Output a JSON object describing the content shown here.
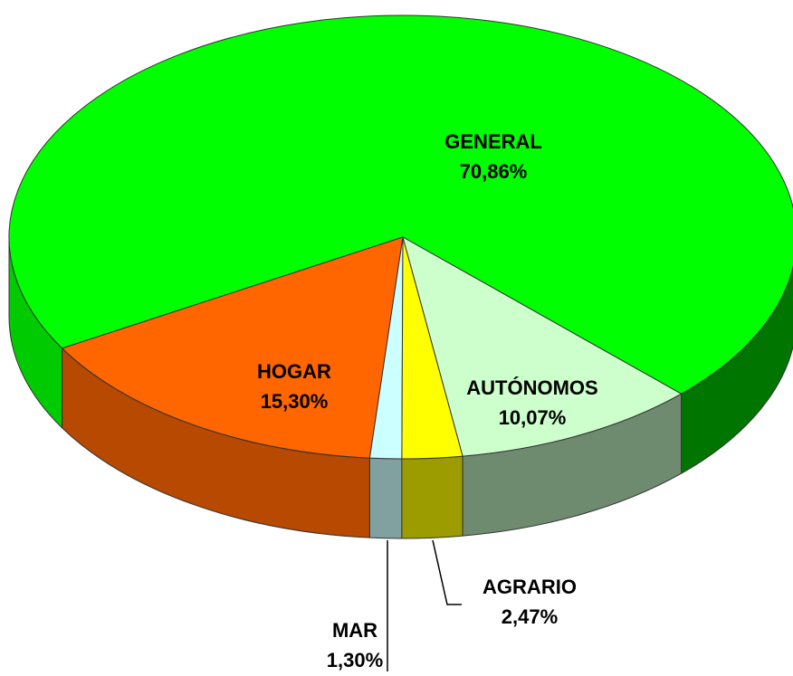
{
  "chart_data": {
    "type": "pie3d",
    "categories": [
      "GENERAL",
      "HOGAR",
      "MAR",
      "AGRARIO",
      "AUTÓNOMOS"
    ],
    "values": [
      70.86,
      15.3,
      1.3,
      2.47,
      10.07
    ],
    "value_labels": [
      "70,86%",
      "15,30%",
      "1,30%",
      "2,47%",
      "10,07%"
    ],
    "colors": [
      "#00ff00",
      "#ff6600",
      "#ccffff",
      "#ffff00",
      "#ccffcc"
    ]
  }
}
